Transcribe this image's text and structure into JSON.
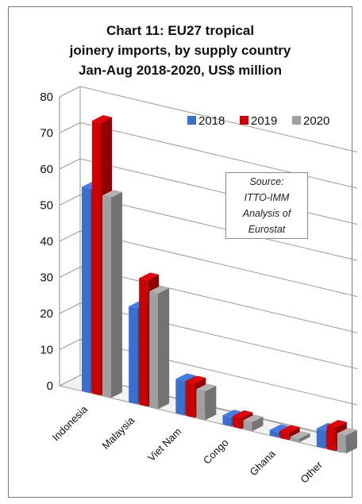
{
  "chart_data": {
    "type": "bar",
    "title_lines": [
      "Chart 11: EU27 tropical",
      "joinery imports, by supply country",
      "Jan-Aug 2018-2020, US$ million"
    ],
    "categories": [
      "Indonesia",
      "Malaysia",
      "Viet Nam",
      "Congo",
      "Ghana",
      "Other"
    ],
    "series": [
      {
        "name": "2018",
        "color": "#3a6fd0",
        "values": [
          56.5,
          26.5,
          9.5,
          2.5,
          1.5,
          5.0
        ]
      },
      {
        "name": "2019",
        "color": "#cc0000",
        "values": [
          75.5,
          35.0,
          9.5,
          3.0,
          2.0,
          6.5
        ]
      },
      {
        "name": "2020",
        "color": "#a0a0a0",
        "values": [
          55.5,
          32.0,
          8.0,
          2.5,
          1.0,
          5.0
        ]
      }
    ],
    "yticks": [
      0,
      10,
      20,
      30,
      40,
      50,
      60,
      70,
      80
    ],
    "ylim": [
      0,
      80
    ],
    "grid": true,
    "legend_position": "top-right",
    "source_lines": [
      "Source:",
      "ITTO-IMM",
      "Analysis of",
      "Eurostat"
    ]
  }
}
